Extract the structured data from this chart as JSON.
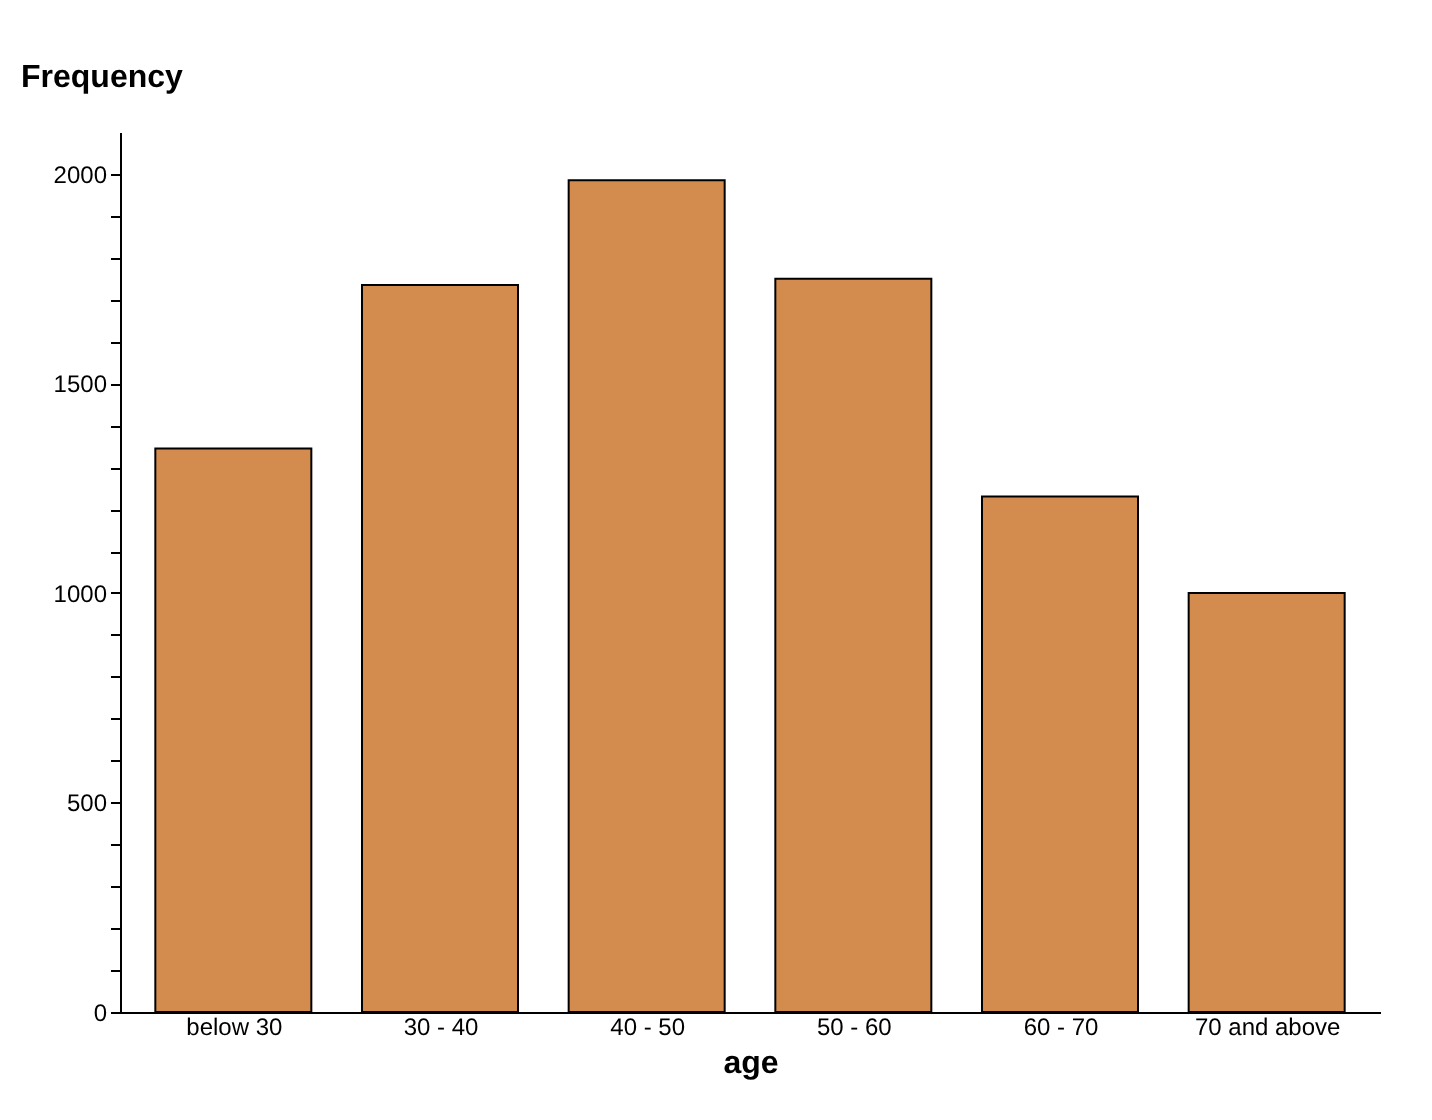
{
  "chart_data": {
    "type": "bar",
    "xlabel": "age",
    "ylabel": "Frequency",
    "categories": [
      "below 30",
      "30 - 40",
      "40 - 50",
      "50 - 60",
      "60 - 70",
      "70 and above"
    ],
    "values": [
      1345,
      1735,
      1985,
      1750,
      1230,
      1000
    ],
    "color": "#d48c4e",
    "ylim": [
      0,
      2100
    ],
    "yticks": [
      0,
      {
        "value": 100,
        "label": null
      },
      {
        "value": 200,
        "label": null
      },
      {
        "value": 300,
        "label": null
      },
      {
        "value": 400,
        "label": null
      },
      500,
      {
        "value": 600,
        "label": null
      },
      {
        "value": 700,
        "label": null
      },
      {
        "value": 800,
        "label": null
      },
      {
        "value": 900,
        "label": null
      },
      1000,
      {
        "value": 1100,
        "label": null
      },
      {
        "value": 1200,
        "label": null
      },
      {
        "value": 1300,
        "label": null
      },
      {
        "value": 1400,
        "label": null
      },
      1500,
      {
        "value": 1600,
        "label": null
      },
      {
        "value": 1700,
        "label": null
      },
      {
        "value": 1800,
        "label": null
      },
      {
        "value": 1900,
        "label": null
      },
      2000
    ],
    "grid": false
  }
}
